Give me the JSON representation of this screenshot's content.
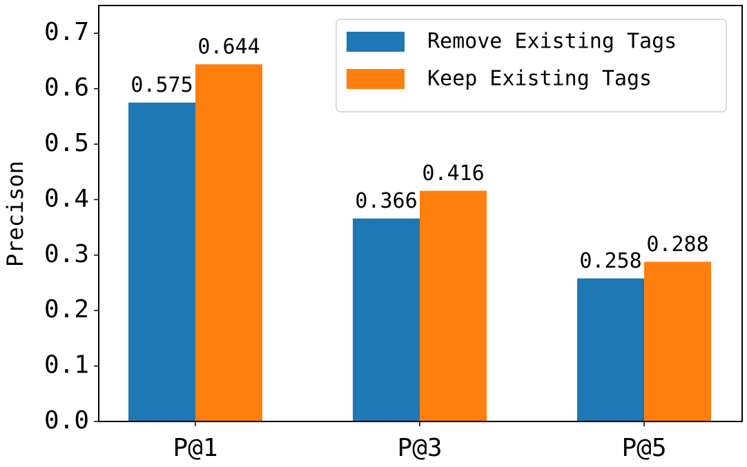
{
  "chart_data": {
    "type": "bar",
    "ylabel": "Precison",
    "categories": [
      "P@1",
      "P@3",
      "P@5"
    ],
    "series": [
      {
        "name": "Remove Existing Tags",
        "color": "#1f77b4",
        "values": [
          0.575,
          0.366,
          0.258
        ]
      },
      {
        "name": "Keep Existing Tags",
        "color": "#ff7f0e",
        "values": [
          0.644,
          0.416,
          0.288
        ]
      }
    ],
    "ylim": [
      0,
      0.75
    ],
    "yticks": [
      {
        "value": 0,
        "label": "0.0"
      },
      0.1,
      0.2,
      0.3,
      0.4,
      0.5,
      0.6,
      0.7
    ],
    "legend": "upper right"
  }
}
